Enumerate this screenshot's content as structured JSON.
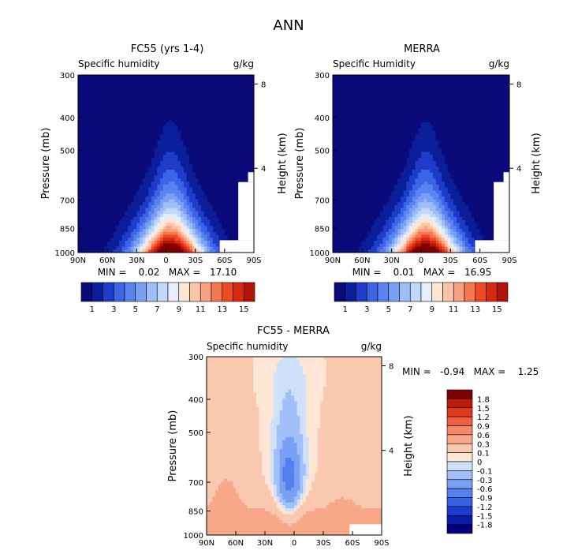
{
  "page_title": "ANN",
  "colors": {
    "abs_scale": [
      "#0a0a7a",
      "#0a1e9a",
      "#1e3cc8",
      "#3c64e6",
      "#5a82f0",
      "#7aa0f5",
      "#9ebef8",
      "#c0d8fa",
      "#e6eefc",
      "#fde6d2",
      "#fbc4a4",
      "#f8a080",
      "#f57850",
      "#ee4a24",
      "#d82a12",
      "#b41408",
      "#800000"
    ],
    "diff_scale": [
      "#00007c",
      "#0a1aa8",
      "#1e3ccc",
      "#3560e6",
      "#5580ef",
      "#7aa0f4",
      "#a2c0f8",
      "#cfe0fa",
      "#fde6d6",
      "#fac8ae",
      "#f7a888",
      "#f48868",
      "#ee6040",
      "#e03a1a",
      "#b81c0a",
      "#800000"
    ]
  },
  "chart_data": [
    {
      "id": "fc55",
      "type": "heatmap",
      "title": "FC55 (yrs 1-4)",
      "subtitle_left": "Specific humidity",
      "subtitle_right": "g/kg",
      "ylabel": "Pressure (mb)",
      "ylabel_right": "Height (km)",
      "x_ticks": [
        "90N",
        "60N",
        "30N",
        "0",
        "30S",
        "60S",
        "90S"
      ],
      "y_ticks": [
        "300",
        "400",
        "500",
        "700",
        "850",
        "1000"
      ],
      "y_right_ticks": [
        "8",
        "4"
      ],
      "min_label": "MIN =    0.02   MAX =   17.10",
      "min": 0.02,
      "max": 17.1,
      "peak_lat": -5,
      "colorbar_labels": [
        "1",
        "3",
        "5",
        "7",
        "9",
        "11",
        "13",
        "15"
      ]
    },
    {
      "id": "merra",
      "type": "heatmap",
      "title": "MERRA",
      "subtitle_left": "Specific Humidity",
      "subtitle_right": "g/kg",
      "ylabel": "Pressure (mb)",
      "ylabel_right": "Height (km)",
      "x_ticks": [
        "90N",
        "60N",
        "30N",
        "0",
        "30S",
        "60S",
        "90S"
      ],
      "y_ticks": [
        "300",
        "400",
        "500",
        "700",
        "850",
        "1000"
      ],
      "y_right_ticks": [
        "8",
        "4"
      ],
      "min_label": "MIN =    0.01   MAX =   16.95",
      "min": 0.01,
      "max": 16.95,
      "peak_lat": -5,
      "colorbar_labels": [
        "1",
        "3",
        "5",
        "7",
        "9",
        "11",
        "13",
        "15"
      ]
    },
    {
      "id": "diff",
      "type": "heatmap",
      "title": "FC55 - MERRA",
      "subtitle_left": "Specific humidity",
      "subtitle_right": "g/kg",
      "ylabel": "Pressure (mb)",
      "ylabel_right": "Height (km)",
      "x_ticks": [
        "90N",
        "60N",
        "30N",
        "0",
        "30S",
        "60S",
        "90S"
      ],
      "y_ticks": [
        "300",
        "400",
        "500",
        "700",
        "850",
        "1000"
      ],
      "y_right_ticks": [
        "8",
        "4"
      ],
      "min_label": "MIN =   -0.94   MAX =    1.25",
      "min": -0.94,
      "max": 1.25,
      "colorbar_labels": [
        "1.8",
        "1.5",
        "1.2",
        "0.9",
        "0.6",
        "0.3",
        "0.1",
        "0",
        "-0.1",
        "-0.3",
        "-0.6",
        "-0.9",
        "-1.2",
        "-1.5",
        "-1.8"
      ]
    }
  ]
}
